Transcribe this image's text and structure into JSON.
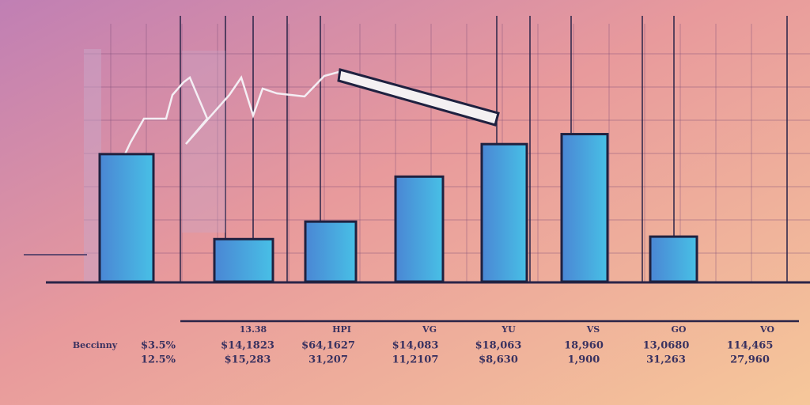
{
  "chart_data": {
    "type": "bar",
    "categories": [
      null,
      null,
      null,
      null,
      null,
      null,
      null
    ],
    "values": [
      51,
      17,
      24,
      42,
      55,
      59,
      18
    ],
    "color": "#3fa9dc",
    "ylim": [
      0,
      100
    ],
    "grid": true,
    "column_labels": [
      "13.38",
      "HPI",
      "VG",
      "YU",
      "VS",
      "GO",
      "VO"
    ],
    "row_label": "Beccinny",
    "rows": [
      [
        "$3.5%",
        "$14,1823",
        "$64,1627",
        "$14,083",
        "$18,063",
        "18,960",
        "13,0680",
        "114,465"
      ],
      [
        "12.5%",
        "$15,283",
        "31,207",
        "11,2107",
        "$8,630",
        "1,900",
        "31,263",
        "27,960"
      ]
    ]
  }
}
